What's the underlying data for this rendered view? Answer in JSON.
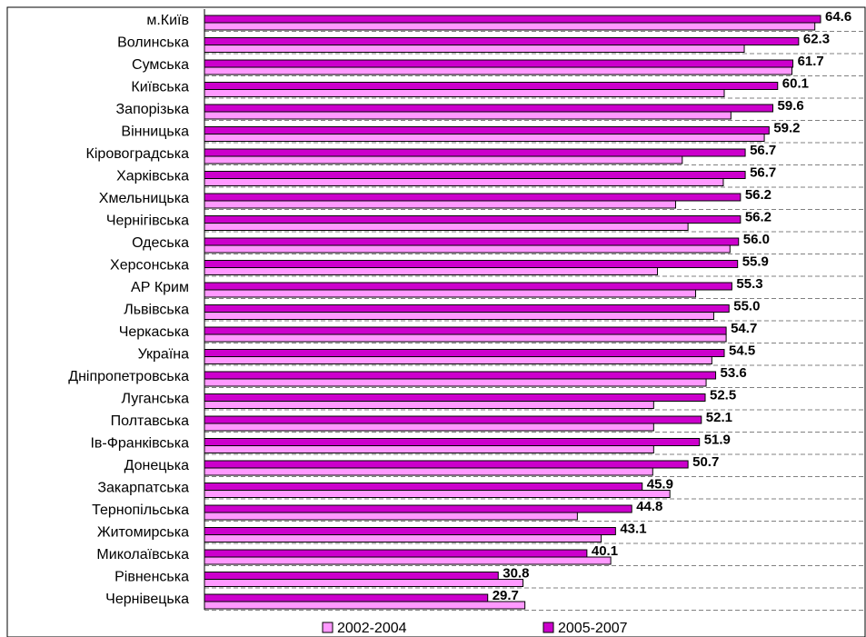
{
  "chart_data": {
    "type": "bar",
    "orientation": "horizontal",
    "categories": [
      "м.Київ",
      "Волинська",
      "Сумська",
      "Київська",
      "Запорізька",
      "Вінницька",
      "Кіровоградська",
      "Харківська",
      "Хмельницька",
      "Чернігівська",
      "Одеська",
      "Херсонська",
      "АР Крим",
      "Львівська",
      "Черкаська",
      "Україна",
      "Дніпропетровська",
      "Луганська",
      "Полтавська",
      "Ів-Франківська",
      "Донецька",
      "Закарпатська",
      "Тернопільська",
      "Житомирська",
      "Миколаївська",
      "Рівненська",
      "Чернівецька"
    ],
    "series": [
      {
        "name": "2002-2004",
        "color": "#ff99ff",
        "values": [
          64.0,
          56.6,
          61.6,
          54.5,
          55.2,
          58.7,
          50.1,
          54.4,
          49.4,
          50.7,
          55.1,
          47.5,
          51.5,
          53.4,
          54.7,
          53.2,
          52.6,
          47.1,
          47.1,
          47.1,
          47.0,
          48.8,
          39.1,
          41.6,
          42.6,
          33.4,
          33.6
        ]
      },
      {
        "name": "2005-2007",
        "color": "#cc00cc",
        "values": [
          64.6,
          62.3,
          61.7,
          60.1,
          59.6,
          59.2,
          56.7,
          56.7,
          56.2,
          56.2,
          56.0,
          55.9,
          55.3,
          55.0,
          54.7,
          54.5,
          53.6,
          52.5,
          52.1,
          51.9,
          50.7,
          45.9,
          44.8,
          43.1,
          40.1,
          30.8,
          29.7
        ]
      }
    ],
    "data_labels": [
      "64.6",
      "62.3",
      "61.7",
      "60.1",
      "59.6",
      "59.2",
      "56.7",
      "56.7",
      "56.2",
      "56.2",
      "56.0",
      "55.9",
      "55.3",
      "55.0",
      "54.7",
      "54.5",
      "53.6",
      "52.5",
      "52.1",
      "51.9",
      "50.7",
      "45.9",
      "44.8",
      "43.1",
      "40.1",
      "30.8",
      "29.7"
    ],
    "xlim": [
      0,
      64.6
    ],
    "grid": "horizontal dashed",
    "legend_position": "bottom",
    "title": "",
    "xlabel": "",
    "ylabel": ""
  }
}
